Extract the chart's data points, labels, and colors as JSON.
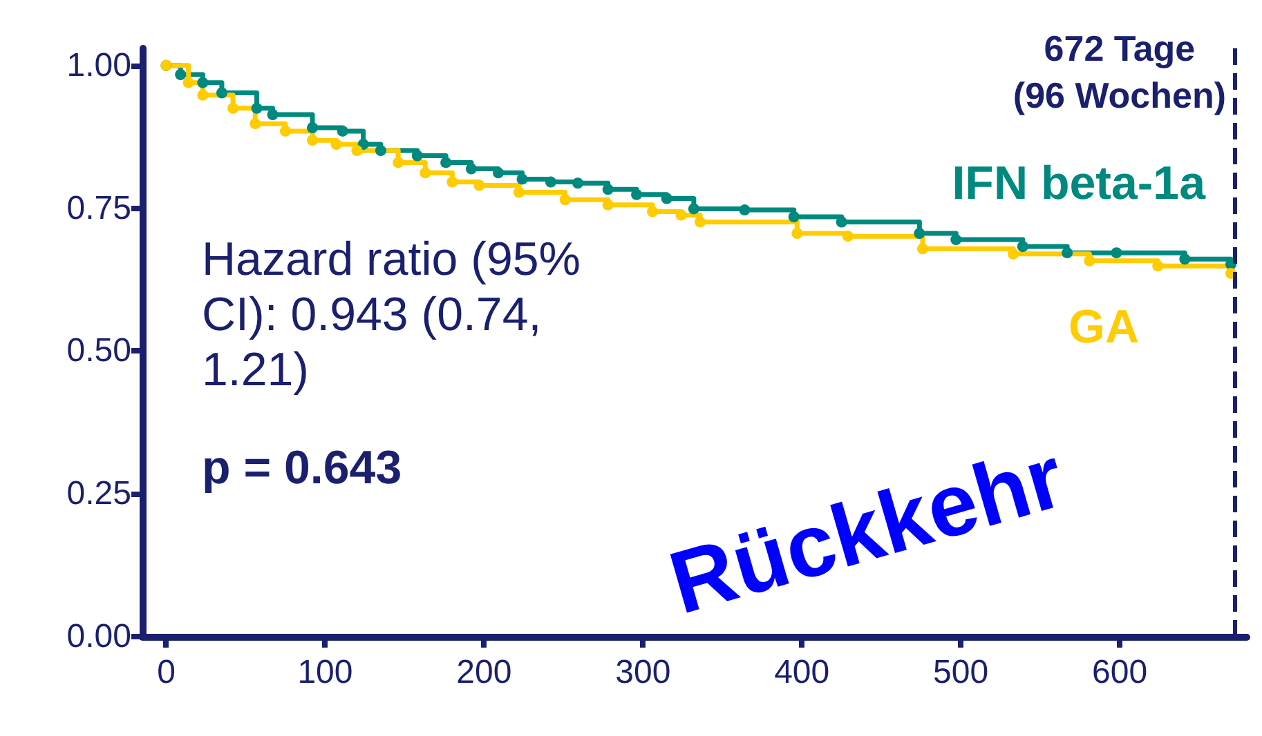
{
  "chart_data": {
    "type": "step",
    "xlim": [
      -15,
      680
    ],
    "ylim": [
      0,
      1.03
    ],
    "xticks": [
      0,
      100,
      200,
      300,
      400,
      500,
      600
    ],
    "yticks": [
      {
        "value": 0,
        "label": "0.00"
      },
      {
        "value": 0.25,
        "label": "0.25"
      },
      {
        "value": 0.5,
        "label": "0.50"
      },
      {
        "value": 0.75,
        "label": "0.75"
      },
      {
        "value": 1,
        "label": "1.00"
      }
    ],
    "grid": false,
    "legend": false,
    "marker": "circle",
    "line_style": "solid",
    "series": [
      {
        "name": "IFN beta-1a",
        "color": "#00897f",
        "x": [
          0,
          9,
          23,
          35,
          57,
          67,
          92,
          111,
          124,
          135,
          158,
          176,
          192,
          209,
          224,
          242,
          259,
          278,
          296,
          315,
          332,
          364,
          395,
          425,
          474,
          497,
          539,
          567,
          598,
          641,
          670
        ],
        "values": [
          1.0,
          0.984,
          0.97,
          0.952,
          0.925,
          0.914,
          0.891,
          0.885,
          0.862,
          0.851,
          0.842,
          0.83,
          0.819,
          0.812,
          0.801,
          0.796,
          0.794,
          0.783,
          0.774,
          0.767,
          0.749,
          0.747,
          0.735,
          0.726,
          0.706,
          0.695,
          0.683,
          0.672,
          0.672,
          0.661,
          0.652
        ]
      },
      {
        "name": "GA",
        "color": "#ffcc00",
        "x": [
          0,
          14,
          23,
          42,
          56,
          75,
          92,
          107,
          120,
          146,
          163,
          180,
          197,
          222,
          251,
          278,
          306,
          324,
          336,
          397,
          429,
          476,
          533,
          581,
          624,
          670
        ],
        "values": [
          1.0,
          0.97,
          0.948,
          0.925,
          0.898,
          0.885,
          0.869,
          0.862,
          0.851,
          0.83,
          0.812,
          0.796,
          0.79,
          0.778,
          0.765,
          0.756,
          0.744,
          0.738,
          0.726,
          0.706,
          0.701,
          0.679,
          0.67,
          0.658,
          0.649,
          0.636
        ]
      }
    ],
    "ref_lines": [
      {
        "axis": "x",
        "value": 672,
        "label": "672 Tage\n(96 Wochen)",
        "color": "#1a1f6e",
        "line_style": "dashed"
      }
    ],
    "annotations": [
      "Hazard ratio (95% CI): 0.943 (0.74, 1.21)",
      "p = 0.643",
      "Rückkehr"
    ]
  }
}
